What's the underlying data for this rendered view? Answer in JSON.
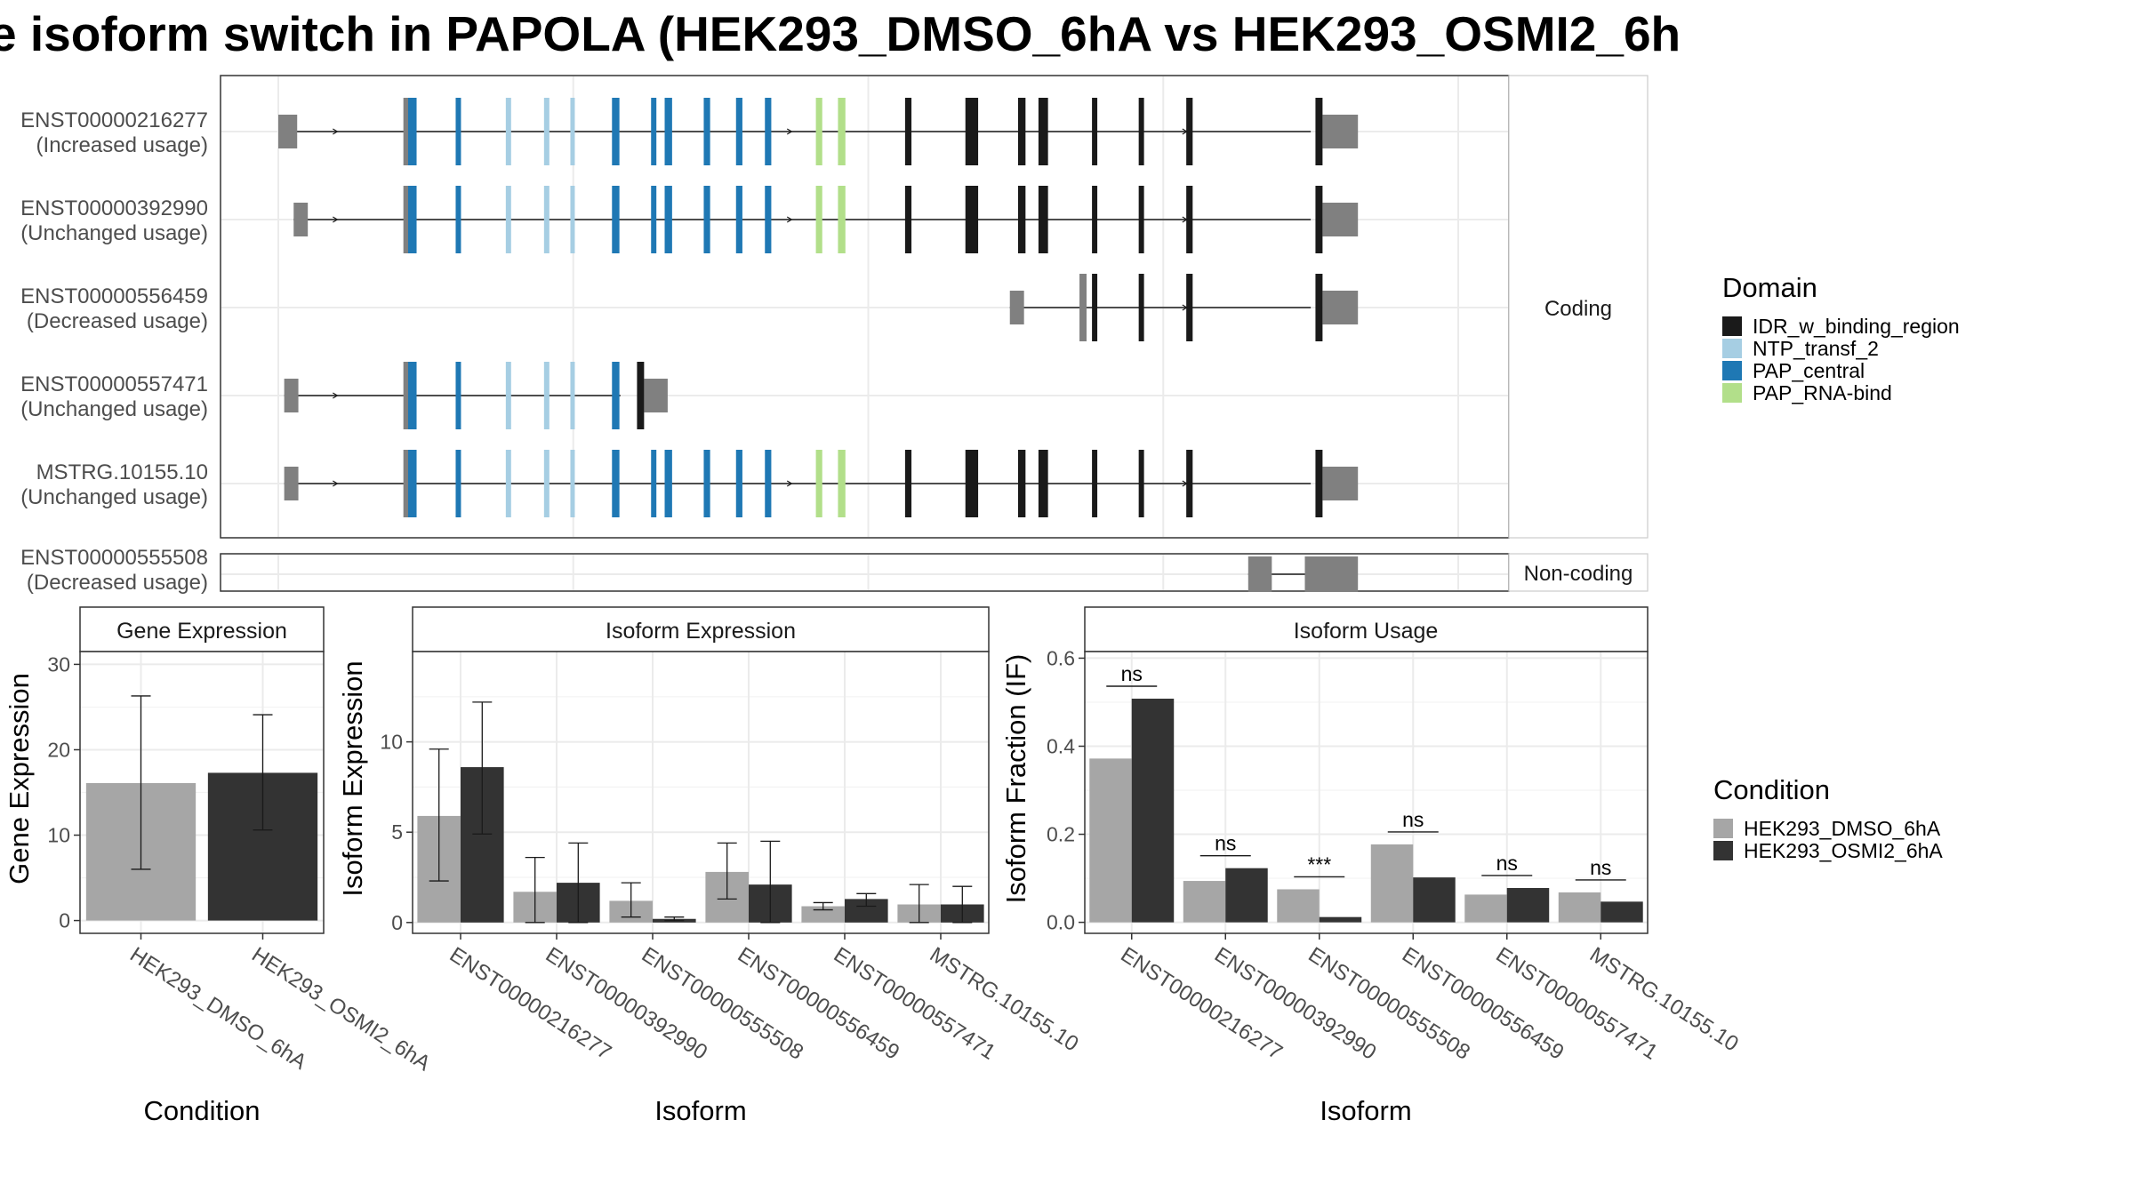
{
  "title": "e isoform switch in PAPOLA (HEK293_DMSO_6hA vs HEK293_OSMI2_6h",
  "colors": {
    "utr": "#808080",
    "domains": {
      "IDR_w_binding_region": "#1a1a1a",
      "NTP_transf_2": "#a6cee3",
      "PAP_central": "#1f78b4",
      "PAP_RNA-bind": "#b2df8a"
    },
    "conditions": [
      "#a6a6a6",
      "#333333"
    ]
  },
  "structure": {
    "facets": {
      "coding": "Coding",
      "noncoding": "Non-coding"
    },
    "transcripts": [
      {
        "id": "ENST00000216277",
        "usage": "(Increased usage)",
        "group": "coding",
        "start": 0.0,
        "end": 0.915,
        "cds_start": 0.11,
        "cds_end": 0.885
      },
      {
        "id": "ENST00000392990",
        "usage": "(Unchanged usage)",
        "group": "coding",
        "start": 0.013,
        "end": 0.915,
        "cds_start": 0.11,
        "cds_end": 0.885
      },
      {
        "id": "ENST00000556459",
        "usage": "(Decreased usage)",
        "group": "coding",
        "start": 0.62,
        "end": 0.915,
        "cds_start": 0.683,
        "cds_end": 0.885
      },
      {
        "id": "ENST00000557471",
        "usage": "(Unchanged usage)",
        "group": "coding",
        "start": 0.005,
        "end": 0.33,
        "cds_start": 0.11,
        "cds_end": 0.31
      },
      {
        "id": "MSTRG.10155.10",
        "usage": "(Unchanged usage)",
        "group": "coding",
        "start": 0.005,
        "end": 0.915,
        "cds_start": 0.11,
        "cds_end": 0.885
      },
      {
        "id": "ENST00000555508",
        "usage": "(Decreased usage)",
        "group": "noncoding",
        "start": 0.822,
        "end": 0.915,
        "cds_start": null,
        "cds_end": null
      }
    ]
  },
  "chart_data": [
    {
      "type": "bar",
      "title": "Gene Expression",
      "xlabel": "Condition",
      "ylabel": "Gene Expression",
      "categories": [
        "HEK293_DMSO_6hA",
        "HEK293_OSMI2_6hA"
      ],
      "values": [
        16.1,
        17.3
      ],
      "errors": [
        [
          6.0,
          26.3
        ],
        [
          10.6,
          24.1
        ]
      ],
      "ylim": [
        -1.5,
        31.5
      ],
      "yticks": [
        0,
        10,
        20,
        30
      ],
      "grid": true
    },
    {
      "type": "bar",
      "title": "Isoform Expression",
      "xlabel": "Isoform",
      "ylabel": "Isoform Expression",
      "categories": [
        "ENST00000216277",
        "ENST00000392990",
        "ENST00000555508",
        "ENST00000556459",
        "ENST00000557471",
        "MSTRG.10155.10"
      ],
      "series": [
        {
          "name": "HEK293_DMSO_6hA",
          "values": [
            5.9,
            1.7,
            1.2,
            2.8,
            0.9,
            1.0
          ],
          "errors": [
            [
              2.3,
              9.6
            ],
            [
              0.0,
              3.6
            ],
            [
              0.3,
              2.2
            ],
            [
              1.3,
              4.4
            ],
            [
              0.7,
              1.1
            ],
            [
              0.0,
              2.1
            ]
          ]
        },
        {
          "name": "HEK293_OSMI2_6hA",
          "values": [
            8.6,
            2.2,
            0.2,
            2.1,
            1.3,
            1.0
          ],
          "errors": [
            [
              4.9,
              12.2
            ],
            [
              0.0,
              4.4
            ],
            [
              0.1,
              0.3
            ],
            [
              0.0,
              4.5
            ],
            [
              0.9,
              1.6
            ],
            [
              0.0,
              2.0
            ]
          ]
        }
      ],
      "ylim": [
        -0.6,
        15.0
      ],
      "yticks": [
        0,
        5,
        10
      ],
      "grid": true
    },
    {
      "type": "bar",
      "title": "Isoform Usage",
      "xlabel": "Isoform",
      "ylabel": "Isoform Fraction (IF)",
      "categories": [
        "ENST00000216277",
        "ENST00000392990",
        "ENST00000555508",
        "ENST00000556459",
        "ENST00000557471",
        "MSTRG.10155.10"
      ],
      "series": [
        {
          "name": "HEK293_DMSO_6hA",
          "values": [
            0.372,
            0.094,
            0.075,
            0.177,
            0.063,
            0.068
          ]
        },
        {
          "name": "HEK293_OSMI2_6hA",
          "values": [
            0.508,
            0.123,
            0.012,
            0.102,
            0.078,
            0.047
          ]
        }
      ],
      "significance": [
        "ns",
        "ns",
        "***",
        "ns",
        "ns",
        "ns"
      ],
      "ylim": [
        -0.025,
        0.615
      ],
      "yticks": [
        0.0,
        0.2,
        0.4,
        0.6
      ],
      "grid": true
    }
  ],
  "legends": {
    "domain": {
      "title": "Domain",
      "items": [
        "IDR_w_binding_region",
        "NTP_transf_2",
        "PAP_central",
        "PAP_RNA-bind"
      ]
    },
    "condition": {
      "title": "Condition",
      "items": [
        "HEK293_DMSO_6hA",
        "HEK293_OSMI2_6hA"
      ]
    }
  }
}
